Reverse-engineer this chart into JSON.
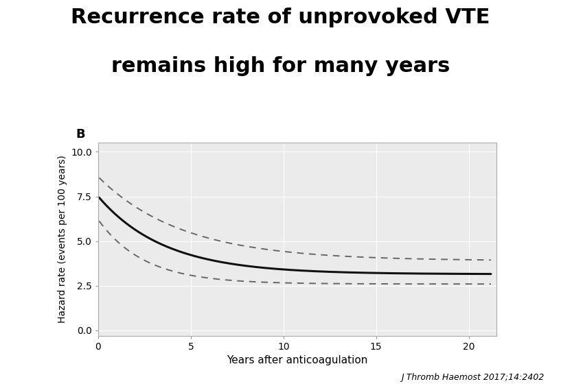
{
  "title_line1": "Recurrence rate of unprovoked VTE",
  "title_line2": "remains high for many years",
  "title_fontsize": 22,
  "title_fontweight": "bold",
  "panel_label": "B",
  "xlabel": "Years after anticoagulation",
  "ylabel": "Hazard rate (events per 100 years)",
  "xlabel_fontsize": 11,
  "ylabel_fontsize": 10,
  "citation": "J Thromb Haemost 2017;14:2402",
  "citation_fontsize": 9,
  "xlim": [
    0,
    21.5
  ],
  "ylim": [
    -0.3,
    10.5
  ],
  "xticks": [
    0,
    5,
    10,
    15,
    20
  ],
  "yticks": [
    0.0,
    2.5,
    5.0,
    7.5,
    10.0
  ],
  "background_color": "#ffffff",
  "plot_bg_color": "#ebebeb",
  "grid_color": "#ffffff",
  "curve_color": "#111111",
  "ci_color": "#666666",
  "x_start": 0.05,
  "x_end": 21.2,
  "main_y0": 7.5,
  "main_decay": 0.28,
  "main_asymptote": 3.15,
  "upper_y0": 8.6,
  "upper_decay": 0.22,
  "upper_asymptote": 3.9,
  "lower_y0": 6.2,
  "lower_decay": 0.4,
  "lower_asymptote": 2.6
}
